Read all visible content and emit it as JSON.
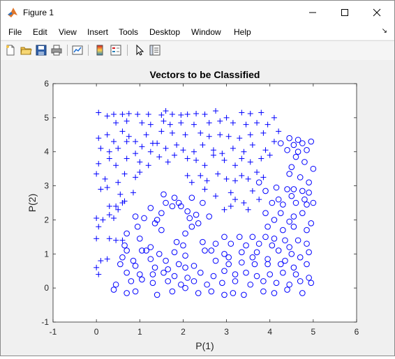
{
  "window": {
    "title": "Figure 1",
    "minimize_icon": "minimize-icon",
    "maximize_icon": "maximize-icon",
    "close_icon": "close-icon"
  },
  "menu": {
    "items": [
      "File",
      "Edit",
      "View",
      "Insert",
      "Tools",
      "Desktop",
      "Window",
      "Help"
    ]
  },
  "toolbar": {
    "icons": [
      "new-figure-icon",
      "open-file-icon",
      "save-icon",
      "print-icon",
      "link-plot-icon",
      "colorbar-icon",
      "legend-icon",
      "edit-plot-arrow-icon",
      "property-inspector-icon"
    ]
  },
  "chart_data": {
    "type": "scatter",
    "title": "Vectors to be Classified",
    "xlabel": "P(1)",
    "ylabel": "P(2)",
    "xlim": [
      -1,
      6
    ],
    "ylim": [
      -1,
      6
    ],
    "xticks": [
      "-1",
      "0",
      "1",
      "2",
      "3",
      "4",
      "5",
      "6"
    ],
    "yticks": [
      "-1",
      "0",
      "1",
      "2",
      "3",
      "4",
      "5",
      "6"
    ],
    "grid": false,
    "color": "#0000ff",
    "series": [
      {
        "marker": "plus",
        "points": [
          [
            0.05,
            5.15
          ],
          [
            0.25,
            5.05
          ],
          [
            0.4,
            5.1
          ],
          [
            0.6,
            5.1
          ],
          [
            0.75,
            5.12
          ],
          [
            0.95,
            5.1
          ],
          [
            1.2,
            5.1
          ],
          [
            1.5,
            5.08
          ],
          [
            1.6,
            5.2
          ],
          [
            1.75,
            5.1
          ],
          [
            1.95,
            5.08
          ],
          [
            2.1,
            5.1
          ],
          [
            2.3,
            5.12
          ],
          [
            2.5,
            5.1
          ],
          [
            2.75,
            5.2
          ],
          [
            3.0,
            5.0
          ],
          [
            3.35,
            5.15
          ],
          [
            3.55,
            5.12
          ],
          [
            3.8,
            5.15
          ],
          [
            4.1,
            5.0
          ],
          [
            0.45,
            4.85
          ],
          [
            0.7,
            4.9
          ],
          [
            1.05,
            4.85
          ],
          [
            1.25,
            4.8
          ],
          [
            1.55,
            4.9
          ],
          [
            1.7,
            4.8
          ],
          [
            1.95,
            4.85
          ],
          [
            2.25,
            4.8
          ],
          [
            2.6,
            4.85
          ],
          [
            2.85,
            4.9
          ],
          [
            3.15,
            4.85
          ],
          [
            3.45,
            4.8
          ],
          [
            3.7,
            4.85
          ],
          [
            3.95,
            4.8
          ],
          [
            0.05,
            4.4
          ],
          [
            0.25,
            4.5
          ],
          [
            0.4,
            4.3
          ],
          [
            0.6,
            4.6
          ],
          [
            0.75,
            4.45
          ],
          [
            0.9,
            4.3
          ],
          [
            1.15,
            4.5
          ],
          [
            1.3,
            4.25
          ],
          [
            1.5,
            4.6
          ],
          [
            1.75,
            4.55
          ],
          [
            2.05,
            4.5
          ],
          [
            2.4,
            4.55
          ],
          [
            2.6,
            4.45
          ],
          [
            2.85,
            4.5
          ],
          [
            3.05,
            4.45
          ],
          [
            3.3,
            4.4
          ],
          [
            3.55,
            4.5
          ],
          [
            3.85,
            4.55
          ],
          [
            4.2,
            4.6
          ],
          [
            0.1,
            4.1
          ],
          [
            0.3,
            4.0
          ],
          [
            0.5,
            4.1
          ],
          [
            0.7,
            4.3
          ],
          [
            0.9,
            3.95
          ],
          [
            1.05,
            4.15
          ],
          [
            1.25,
            4.0
          ],
          [
            1.4,
            4.25
          ],
          [
            1.6,
            4.1
          ],
          [
            1.85,
            4.2
          ],
          [
            2.0,
            4.05
          ],
          [
            2.25,
            4.0
          ],
          [
            2.45,
            4.2
          ],
          [
            2.7,
            4.05
          ],
          [
            2.9,
            3.95
          ],
          [
            3.15,
            4.1
          ],
          [
            3.4,
            4.0
          ],
          [
            3.6,
            4.2
          ],
          [
            3.9,
            4.05
          ],
          [
            4.1,
            4.3
          ],
          [
            0.05,
            3.65
          ],
          [
            0.3,
            3.8
          ],
          [
            0.45,
            3.6
          ],
          [
            0.7,
            3.8
          ],
          [
            1.0,
            3.7
          ],
          [
            1.2,
            3.6
          ],
          [
            1.45,
            3.85
          ],
          [
            1.65,
            3.7
          ],
          [
            1.8,
            3.9
          ],
          [
            2.1,
            3.8
          ],
          [
            2.3,
            3.75
          ],
          [
            2.5,
            3.6
          ],
          [
            2.7,
            3.9
          ],
          [
            2.95,
            3.75
          ],
          [
            3.2,
            3.6
          ],
          [
            3.35,
            3.8
          ],
          [
            3.55,
            3.7
          ],
          [
            3.8,
            3.8
          ],
          [
            4.0,
            3.9
          ],
          [
            0.0,
            3.35
          ],
          [
            0.2,
            3.2
          ],
          [
            0.5,
            3.1
          ],
          [
            0.65,
            3.35
          ],
          [
            0.9,
            3.25
          ],
          [
            1.0,
            3.4
          ],
          [
            2.1,
            3.3
          ],
          [
            2.2,
            3.1
          ],
          [
            2.4,
            3.3
          ],
          [
            2.55,
            3.15
          ],
          [
            2.8,
            3.35
          ],
          [
            3.0,
            3.2
          ],
          [
            3.2,
            3.15
          ],
          [
            3.35,
            3.3
          ],
          [
            3.5,
            3.2
          ],
          [
            3.7,
            3.4
          ],
          [
            3.85,
            3.25
          ],
          [
            0.1,
            2.9
          ],
          [
            0.25,
            2.95
          ],
          [
            0.55,
            2.75
          ],
          [
            0.65,
            2.55
          ],
          [
            0.85,
            2.8
          ],
          [
            2.5,
            2.9
          ],
          [
            2.75,
            2.7
          ],
          [
            3.1,
            2.8
          ],
          [
            3.2,
            2.6
          ],
          [
            3.4,
            2.5
          ],
          [
            3.6,
            2.85
          ],
          [
            3.75,
            2.6
          ],
          [
            0.3,
            2.4
          ],
          [
            0.45,
            2.4
          ],
          [
            0.5,
            2.3
          ],
          [
            0.6,
            2.5
          ],
          [
            2.95,
            2.3
          ],
          [
            3.1,
            2.4
          ],
          [
            3.5,
            2.3
          ],
          [
            0.0,
            2.05
          ],
          [
            0.15,
            2.0
          ],
          [
            0.3,
            2.15
          ],
          [
            0.4,
            2.05
          ],
          [
            0.05,
            1.8
          ],
          [
            0.0,
            1.45
          ],
          [
            0.3,
            1.45
          ],
          [
            0.45,
            1.4
          ],
          [
            0.6,
            1.4
          ],
          [
            0.1,
            0.8
          ],
          [
            0.25,
            0.85
          ],
          [
            0.0,
            0.6
          ],
          [
            0.05,
            0.4
          ]
        ]
      },
      {
        "marker": "circle",
        "points": [
          [
            4.45,
            4.4
          ],
          [
            4.65,
            4.35
          ],
          [
            4.95,
            4.3
          ],
          [
            4.25,
            4.25
          ],
          [
            4.55,
            4.2
          ],
          [
            4.75,
            4.25
          ],
          [
            4.4,
            4.05
          ],
          [
            4.65,
            4.0
          ],
          [
            4.85,
            4.05
          ],
          [
            4.6,
            3.85
          ],
          [
            4.8,
            3.7
          ],
          [
            4.5,
            3.55
          ],
          [
            5.0,
            3.5
          ],
          [
            4.45,
            3.35
          ],
          [
            4.7,
            3.25
          ],
          [
            3.75,
            3.1
          ],
          [
            4.9,
            3.1
          ],
          [
            3.9,
            2.85
          ],
          [
            4.15,
            2.95
          ],
          [
            4.4,
            2.9
          ],
          [
            4.55,
            2.9
          ],
          [
            4.75,
            2.85
          ],
          [
            4.9,
            2.8
          ],
          [
            4.2,
            2.6
          ],
          [
            4.5,
            2.7
          ],
          [
            4.8,
            2.6
          ],
          [
            4.05,
            2.5
          ],
          [
            4.3,
            2.45
          ],
          [
            4.6,
            2.5
          ],
          [
            4.85,
            2.45
          ],
          [
            5.0,
            2.5
          ],
          [
            3.9,
            2.2
          ],
          [
            4.25,
            2.2
          ],
          [
            4.55,
            2.1
          ],
          [
            4.75,
            2.2
          ],
          [
            4.1,
            2.0
          ],
          [
            4.45,
            1.95
          ],
          [
            4.95,
            1.9
          ],
          [
            3.95,
            1.8
          ],
          [
            4.3,
            1.7
          ],
          [
            4.55,
            1.8
          ],
          [
            4.85,
            1.7
          ],
          [
            1.55,
            2.75
          ],
          [
            1.6,
            2.5
          ],
          [
            1.8,
            2.65
          ],
          [
            1.9,
            2.5
          ],
          [
            2.2,
            2.65
          ],
          [
            2.45,
            2.5
          ],
          [
            1.25,
            2.35
          ],
          [
            1.75,
            2.4
          ],
          [
            1.95,
            2.4
          ],
          [
            2.1,
            2.25
          ],
          [
            2.3,
            2.15
          ],
          [
            2.6,
            2.1
          ],
          [
            1.5,
            2.2
          ],
          [
            0.9,
            2.1
          ],
          [
            1.1,
            2.05
          ],
          [
            1.4,
            2.0
          ],
          [
            2.15,
            2.05
          ],
          [
            2.35,
            1.9
          ],
          [
            0.95,
            1.8
          ],
          [
            1.35,
            1.9
          ],
          [
            2.2,
            1.8
          ],
          [
            1.5,
            1.7
          ],
          [
            2.05,
            1.6
          ],
          [
            0.7,
            1.6
          ],
          [
            1.0,
            1.45
          ],
          [
            1.85,
            1.35
          ],
          [
            2.45,
            1.35
          ],
          [
            0.65,
            1.25
          ],
          [
            1.25,
            1.2
          ],
          [
            2.0,
            1.25
          ],
          [
            2.5,
            1.1
          ],
          [
            2.95,
            1.5
          ],
          [
            3.3,
            1.5
          ],
          [
            3.6,
            1.5
          ],
          [
            3.9,
            1.5
          ],
          [
            4.1,
            1.45
          ],
          [
            4.35,
            1.4
          ],
          [
            4.65,
            1.4
          ],
          [
            2.75,
            1.3
          ],
          [
            3.1,
            1.3
          ],
          [
            3.45,
            1.25
          ],
          [
            3.75,
            1.3
          ],
          [
            4.05,
            1.25
          ],
          [
            4.45,
            1.2
          ],
          [
            4.85,
            1.3
          ],
          [
            2.65,
            1.1
          ],
          [
            2.95,
            1.0
          ],
          [
            3.35,
            1.05
          ],
          [
            3.7,
            1.05
          ],
          [
            4.2,
            1.1
          ],
          [
            4.5,
            1.0
          ],
          [
            4.9,
            1.05
          ],
          [
            3.05,
            0.9
          ],
          [
            3.6,
            0.9
          ],
          [
            3.95,
            0.85
          ],
          [
            4.35,
            0.8
          ],
          [
            4.7,
            0.9
          ],
          [
            0.7,
            1.1
          ],
          [
            1.05,
            1.1
          ],
          [
            1.15,
            1.1
          ],
          [
            1.45,
            1.0
          ],
          [
            1.8,
            1.05
          ],
          [
            2.05,
            0.95
          ],
          [
            0.6,
            0.9
          ],
          [
            0.85,
            0.8
          ],
          [
            1.25,
            0.85
          ],
          [
            1.6,
            0.8
          ],
          [
            1.9,
            0.7
          ],
          [
            2.25,
            0.65
          ],
          [
            0.55,
            0.7
          ],
          [
            0.9,
            0.65
          ],
          [
            1.35,
            0.6
          ],
          [
            1.65,
            0.55
          ],
          [
            2.05,
            0.6
          ],
          [
            2.75,
            0.8
          ],
          [
            3.05,
            0.7
          ],
          [
            3.35,
            0.75
          ],
          [
            3.65,
            0.7
          ],
          [
            3.95,
            0.7
          ],
          [
            4.25,
            0.7
          ],
          [
            4.55,
            0.6
          ],
          [
            4.85,
            0.7
          ],
          [
            0.7,
            0.45
          ],
          [
            1.0,
            0.4
          ],
          [
            1.3,
            0.4
          ],
          [
            1.55,
            0.45
          ],
          [
            1.8,
            0.35
          ],
          [
            2.1,
            0.3
          ],
          [
            2.4,
            0.45
          ],
          [
            2.7,
            0.35
          ],
          [
            2.95,
            0.5
          ],
          [
            3.2,
            0.4
          ],
          [
            3.45,
            0.45
          ],
          [
            3.7,
            0.35
          ],
          [
            4.0,
            0.4
          ],
          [
            4.3,
            0.45
          ],
          [
            4.6,
            0.4
          ],
          [
            4.9,
            0.3
          ],
          [
            0.45,
            0.1
          ],
          [
            0.8,
            0.2
          ],
          [
            1.05,
            0.25
          ],
          [
            1.3,
            0.15
          ],
          [
            1.65,
            0.2
          ],
          [
            1.95,
            0.1
          ],
          [
            2.25,
            0.2
          ],
          [
            2.55,
            0.1
          ],
          [
            2.9,
            0.15
          ],
          [
            3.2,
            0.2
          ],
          [
            3.55,
            0.1
          ],
          [
            3.85,
            0.2
          ],
          [
            4.15,
            0.15
          ],
          [
            4.45,
            0.1
          ],
          [
            4.7,
            0.2
          ],
          [
            4.95,
            0.15
          ],
          [
            0.4,
            -0.05
          ],
          [
            0.7,
            -0.15
          ],
          [
            0.9,
            -0.1
          ],
          [
            1.4,
            -0.2
          ],
          [
            1.75,
            -0.1
          ],
          [
            2.05,
            0.0
          ],
          [
            2.35,
            -0.15
          ],
          [
            2.65,
            -0.1
          ],
          [
            2.95,
            -0.2
          ],
          [
            3.15,
            -0.15
          ],
          [
            3.4,
            -0.2
          ],
          [
            3.85,
            -0.1
          ],
          [
            4.1,
            -0.15
          ],
          [
            4.4,
            -0.05
          ],
          [
            4.75,
            -0.15
          ]
        ]
      }
    ]
  }
}
